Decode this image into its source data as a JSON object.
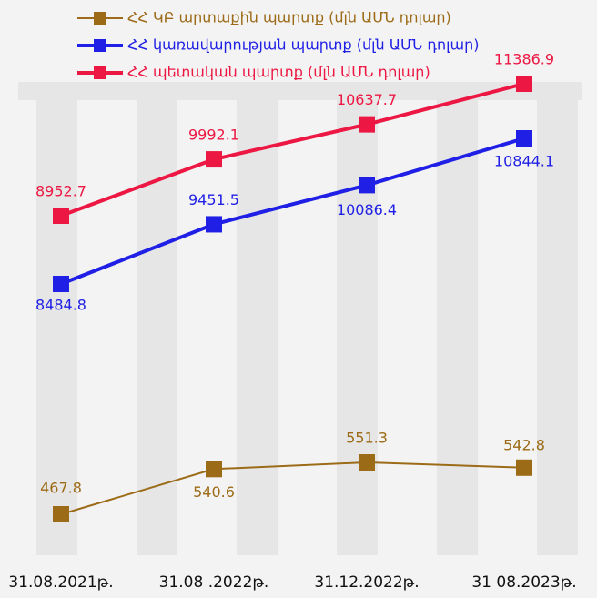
{
  "chart_data": {
    "type": "line",
    "categories": [
      "31.08.2021թ.",
      "31.08 .2022թ.",
      "31.12.2022թ.",
      "31 08.2023թ."
    ],
    "series": [
      {
        "name": "ՀՀ ԿԲ արտաքին պարտք (մլն ԱՄՆ դոլար)",
        "color": "#9c6b17",
        "values": [
          467.8,
          540.6,
          551.3,
          542.8
        ]
      },
      {
        "name": "ՀՀ կառավարության պարտք (մլն ԱՄՆ դոլար)",
        "color": "#1f1fe6",
        "values": [
          8484.8,
          9451.5,
          10086.4,
          10844.1
        ]
      },
      {
        "name": "ՀՀ պետական պարտք (մլն ԱՄՆ դոլար)",
        "color": "#ec1843",
        "values": [
          8952.7,
          9992.1,
          10637.7,
          11386.9
        ]
      }
    ]
  }
}
